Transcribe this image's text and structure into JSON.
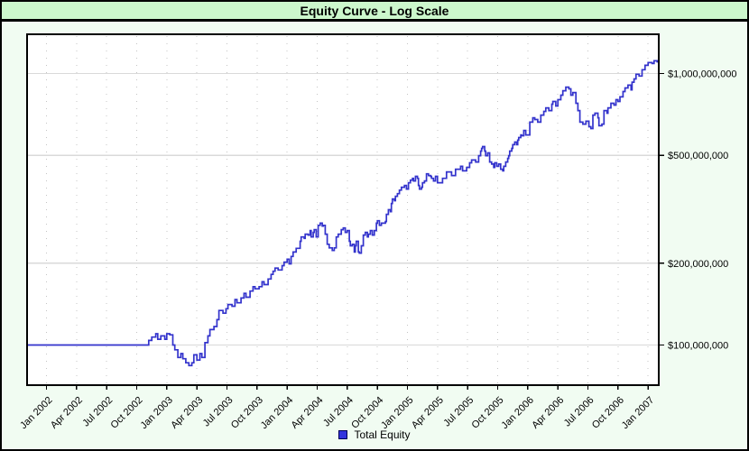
{
  "window": {
    "title": "Equity Curve - Log Scale"
  },
  "legend": {
    "label": "Total Equity",
    "swatch_color": "#3333dd",
    "swatch_border": "#000055"
  },
  "colors": {
    "title_bar_bg": "#ccf7cc",
    "chart_surround_bg": "#f1fcf2",
    "plot_bg": "#ffffff",
    "line": "#3333cc",
    "solid_grid": "#d9d9d9",
    "dotted_grid": "#c4c4c4",
    "axis_border": "#000000"
  },
  "chart_data": {
    "type": "line",
    "title": "Equity Curve - Log Scale",
    "y_scale": "log",
    "legend_position": "bottom",
    "grid": {
      "horizontal": "solid at y ticks",
      "vertical": "dotted at x ticks"
    },
    "x_axis": {
      "tick_labels": [
        "Jan 2002",
        "Apr 2002",
        "Jul 2002",
        "Oct 2002",
        "Jan 2003",
        "Apr 2003",
        "Jul 2003",
        "Oct 2003",
        "Jan 2004",
        "Apr 2004",
        "Jul 2004",
        "Oct 2004",
        "Jan 2005",
        "Apr 2005",
        "Jul 2005",
        "Oct 2005",
        "Jan 2006",
        "Apr 2006",
        "Jul 2006",
        "Oct 2006",
        "Jan 2007"
      ],
      "tick_months_since_jan2002": [
        0,
        3,
        6,
        9,
        12,
        15,
        18,
        21,
        24,
        27,
        30,
        33,
        36,
        39,
        42,
        45,
        48,
        51,
        54,
        57,
        60
      ],
      "range_months": [
        -1.9,
        60.9
      ]
    },
    "y_axis": {
      "tick_labels": [
        "$1,000,000,000",
        "$500,000,000",
        "$200,000,000",
        "$100,000,000"
      ],
      "tick_values_millions": [
        1000,
        500,
        200,
        100
      ],
      "units": "USD",
      "ylim_millions": [
        71,
        1400
      ]
    },
    "series": [
      {
        "name": "Total Equity",
        "color": "#3333cc",
        "points_month_valueM": [
          [
            -1.9,
            100
          ],
          [
            9.9,
            100
          ],
          [
            10.2,
            104
          ],
          [
            10.5,
            107
          ],
          [
            10.9,
            110
          ],
          [
            11.1,
            105
          ],
          [
            11.4,
            108
          ],
          [
            11.8,
            105
          ],
          [
            12.0,
            110
          ],
          [
            12.3,
            109
          ],
          [
            12.6,
            100
          ],
          [
            12.8,
            96
          ],
          [
            13.1,
            90
          ],
          [
            13.4,
            93
          ],
          [
            13.6,
            89
          ],
          [
            13.9,
            86
          ],
          [
            14.2,
            84
          ],
          [
            14.5,
            86
          ],
          [
            14.7,
            92
          ],
          [
            15.0,
            88
          ],
          [
            15.3,
            93
          ],
          [
            15.5,
            90
          ],
          [
            15.8,
            102
          ],
          [
            16.1,
            108
          ],
          [
            16.3,
            114
          ],
          [
            16.7,
            117
          ],
          [
            17.0,
            124
          ],
          [
            17.2,
            134
          ],
          [
            17.6,
            131
          ],
          [
            17.9,
            136
          ],
          [
            18.1,
            141
          ],
          [
            18.5,
            139
          ],
          [
            18.8,
            147
          ],
          [
            19.0,
            143
          ],
          [
            19.4,
            149
          ],
          [
            19.7,
            155
          ],
          [
            19.9,
            150
          ],
          [
            20.3,
            158
          ],
          [
            20.6,
            164
          ],
          [
            20.8,
            161
          ],
          [
            21.2,
            164
          ],
          [
            21.5,
            171
          ],
          [
            21.7,
            167
          ],
          [
            22.1,
            175
          ],
          [
            22.4,
            182
          ],
          [
            22.6,
            187
          ],
          [
            22.8,
            192
          ],
          [
            23.1,
            189
          ],
          [
            23.5,
            196
          ],
          [
            23.7,
            202
          ],
          [
            24.0,
            207
          ],
          [
            24.2,
            199
          ],
          [
            24.4,
            212
          ],
          [
            24.6,
            220
          ],
          [
            24.9,
            227
          ],
          [
            25.3,
            241
          ],
          [
            25.4,
            250
          ],
          [
            25.7,
            247
          ],
          [
            25.8,
            256
          ],
          [
            26.1,
            254
          ],
          [
            26.3,
            264
          ],
          [
            26.4,
            250
          ],
          [
            26.6,
            260
          ],
          [
            26.7,
            266
          ],
          [
            26.9,
            250
          ],
          [
            27.1,
            276
          ],
          [
            27.3,
            281
          ],
          [
            27.5,
            274
          ],
          [
            27.6,
            276
          ],
          [
            27.8,
            256
          ],
          [
            28.0,
            235
          ],
          [
            28.2,
            228
          ],
          [
            28.5,
            223
          ],
          [
            28.7,
            228
          ],
          [
            28.9,
            250
          ],
          [
            29.1,
            256
          ],
          [
            29.4,
            266
          ],
          [
            29.6,
            270
          ],
          [
            29.8,
            260
          ],
          [
            30.0,
            264
          ],
          [
            30.2,
            241
          ],
          [
            30.3,
            232
          ],
          [
            30.5,
            235
          ],
          [
            30.7,
            220
          ],
          [
            30.8,
            232
          ],
          [
            30.9,
            241
          ],
          [
            31.1,
            220
          ],
          [
            31.2,
            218
          ],
          [
            31.4,
            232
          ],
          [
            31.6,
            254
          ],
          [
            31.8,
            260
          ],
          [
            32.0,
            250
          ],
          [
            32.1,
            256
          ],
          [
            32.3,
            264
          ],
          [
            32.5,
            254
          ],
          [
            32.7,
            264
          ],
          [
            32.9,
            281
          ],
          [
            33.0,
            287
          ],
          [
            33.2,
            276
          ],
          [
            33.4,
            281
          ],
          [
            33.8,
            285
          ],
          [
            33.9,
            303
          ],
          [
            34.1,
            315
          ],
          [
            34.3,
            310
          ],
          [
            34.4,
            332
          ],
          [
            34.5,
            345
          ],
          [
            34.7,
            340
          ],
          [
            34.8,
            353
          ],
          [
            35.0,
            361
          ],
          [
            35.2,
            372
          ],
          [
            35.4,
            381
          ],
          [
            35.7,
            387
          ],
          [
            35.9,
            375
          ],
          [
            36.1,
            396
          ],
          [
            36.3,
            405
          ],
          [
            36.5,
            411
          ],
          [
            36.6,
            402
          ],
          [
            36.8,
            418
          ],
          [
            37.0,
            411
          ],
          [
            37.1,
            387
          ],
          [
            37.2,
            375
          ],
          [
            37.4,
            381
          ],
          [
            37.5,
            396
          ],
          [
            37.7,
            402
          ],
          [
            37.9,
            427
          ],
          [
            38.1,
            421
          ],
          [
            38.3,
            418
          ],
          [
            38.4,
            411
          ],
          [
            38.6,
            402
          ],
          [
            38.8,
            418
          ],
          [
            39.0,
            396
          ],
          [
            39.5,
            411
          ],
          [
            39.9,
            434
          ],
          [
            40.4,
            421
          ],
          [
            40.8,
            444
          ],
          [
            41.3,
            455
          ],
          [
            41.5,
            438
          ],
          [
            41.9,
            451
          ],
          [
            42.2,
            469
          ],
          [
            42.4,
            480
          ],
          [
            42.8,
            472
          ],
          [
            43.1,
            498
          ],
          [
            43.3,
            518
          ],
          [
            43.4,
            530
          ],
          [
            43.5,
            538
          ],
          [
            43.7,
            518
          ],
          [
            43.8,
            498
          ],
          [
            44.0,
            510
          ],
          [
            44.2,
            472
          ],
          [
            44.4,
            464
          ],
          [
            44.6,
            451
          ],
          [
            44.7,
            469
          ],
          [
            44.9,
            455
          ],
          [
            45.1,
            464
          ],
          [
            45.3,
            444
          ],
          [
            45.5,
            438
          ],
          [
            45.6,
            455
          ],
          [
            45.8,
            472
          ],
          [
            46.0,
            487
          ],
          [
            46.1,
            498
          ],
          [
            46.2,
            518
          ],
          [
            46.4,
            530
          ],
          [
            46.5,
            547
          ],
          [
            46.7,
            559
          ],
          [
            46.9,
            547
          ],
          [
            47.0,
            568
          ],
          [
            47.1,
            581
          ],
          [
            47.3,
            594
          ],
          [
            47.4,
            590
          ],
          [
            47.6,
            617
          ],
          [
            47.8,
            594
          ],
          [
            48.2,
            662
          ],
          [
            48.5,
            687
          ],
          [
            48.7,
            677
          ],
          [
            49.0,
            662
          ],
          [
            49.3,
            703
          ],
          [
            49.6,
            725
          ],
          [
            49.8,
            747
          ],
          [
            50.1,
            730
          ],
          [
            50.4,
            771
          ],
          [
            50.5,
            789
          ],
          [
            50.8,
            759
          ],
          [
            51.0,
            801
          ],
          [
            51.3,
            832
          ],
          [
            51.5,
            864
          ],
          [
            51.8,
            891
          ],
          [
            52.1,
            878
          ],
          [
            52.3,
            832
          ],
          [
            52.5,
            851
          ],
          [
            52.8,
            777
          ],
          [
            53.0,
            730
          ],
          [
            53.2,
            662
          ],
          [
            53.5,
            651
          ],
          [
            53.8,
            667
          ],
          [
            54.1,
            637
          ],
          [
            54.3,
            627
          ],
          [
            54.5,
            703
          ],
          [
            54.7,
            714
          ],
          [
            55.0,
            687
          ],
          [
            55.1,
            642
          ],
          [
            55.4,
            651
          ],
          [
            55.6,
            730
          ],
          [
            55.9,
            714
          ],
          [
            56.0,
            747
          ],
          [
            56.3,
            777
          ],
          [
            56.6,
            765
          ],
          [
            56.8,
            801
          ],
          [
            57.0,
            789
          ],
          [
            57.2,
            820
          ],
          [
            57.5,
            858
          ],
          [
            57.7,
            885
          ],
          [
            58.0,
            906
          ],
          [
            58.3,
            870
          ],
          [
            58.4,
            929
          ],
          [
            58.6,
            955
          ],
          [
            58.8,
            994
          ],
          [
            59.1,
            979
          ],
          [
            59.4,
            1033
          ],
          [
            59.7,
            1072
          ],
          [
            60.0,
            1097
          ],
          [
            60.4,
            1089
          ],
          [
            60.6,
            1114
          ],
          [
            60.9,
            1097
          ]
        ]
      }
    ]
  }
}
